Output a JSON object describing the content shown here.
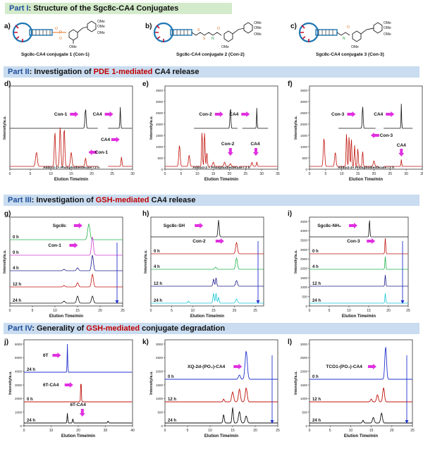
{
  "part1": {
    "prefix": "Part I",
    "title": ": Structure of the Sgc8c-CA4 Conjugates"
  },
  "part2": {
    "prefix": "Part II",
    "pre": ": Investigation of ",
    "highlight": "PDE 1-mediated",
    "post": " CA4 release"
  },
  "part3": {
    "prefix": "Part III",
    "pre": ": Investigation of ",
    "highlight": "GSH-mediated",
    "post": " CA4 release"
  },
  "part4": {
    "prefix": "Part IV",
    "pre": ": Generality of ",
    "highlight": "GSH-mediated",
    "post": " conjugate degradation"
  },
  "structures": [
    {
      "letter": "a)",
      "caption": "Sgc8c-CA4 conjugate 1 (Con-1)",
      "linker": "phosphate"
    },
    {
      "letter": "b)",
      "caption": "Sgc8c-CA4 conjugate 2 (Con-2)",
      "linker": "disulfide carbamate"
    },
    {
      "letter": "c)",
      "caption": "Sgc8c-CA4 conjugate 3 (Con-3)",
      "linker": "carbamate"
    }
  ],
  "ome_label": "OMe",
  "common": {
    "xlabel": "Elution Time/min",
    "ylabel": "Intensity/a.u."
  },
  "pde_charts": [
    {
      "letter": "d)",
      "top_label": "Con-1",
      "ca4_label": "CA4",
      "bottom_label": "CA4",
      "bottom_label2": "Con-1",
      "adduct_label": "Adduct-1+ Phosphodiesterase I  2 h",
      "xticks": [
        0,
        5,
        10,
        15,
        20,
        25,
        30
      ],
      "yticks": [],
      "xmax": 30
    },
    {
      "letter": "e)",
      "top_label": "Con-2",
      "ca4_label": "CA4",
      "bottom_label": "Con-2",
      "bottom_label2": "CA4",
      "adduct_label": "Adduct-2 + Phosphodiesterase I  2 h",
      "xticks": [
        0,
        5,
        10,
        15,
        20,
        25,
        30,
        35
      ],
      "yticks": [
        0,
        500,
        1000,
        1500,
        2000,
        2500,
        3000,
        3500
      ],
      "xmax": 35
    },
    {
      "letter": "f)",
      "top_label": "Con-3",
      "ca4_label": "CA4",
      "bottom_label": "Con-3",
      "bottom_label2": "CA4",
      "adduct_label": "Adduct-3+ Phosphodiesterase I  2 h",
      "xticks": [
        0,
        5,
        10,
        15,
        20,
        25,
        30,
        35
      ],
      "yticks": [
        0,
        500,
        1000,
        1500,
        2000,
        2500,
        3000,
        3500
      ],
      "xmax": 35
    }
  ],
  "gsh_charts": [
    {
      "letter": "g)",
      "labels": [
        "Sgc8c",
        "Con-1"
      ],
      "times": [
        "0 h",
        "0 h",
        "4 h",
        "12 h",
        "24 h"
      ],
      "xticks": [
        0,
        5,
        10,
        15,
        20,
        25
      ],
      "yticks": [],
      "xmax": 25
    },
    {
      "letter": "h)",
      "labels": [
        "Sgc8c-SH",
        "Con-2"
      ],
      "times": [
        "0 h",
        "4 h",
        "12 h",
        "24 h"
      ],
      "xticks": [
        0,
        5,
        10,
        15,
        20,
        25
      ],
      "yticks": [],
      "xmax": 27
    },
    {
      "letter": "i)",
      "labels": [
        "Sgc8c-NH₂",
        "Con-3"
      ],
      "times": [
        "0 h",
        "4 h",
        "12 h",
        "24 h"
      ],
      "xticks": [
        0,
        5,
        10,
        15,
        20,
        25
      ],
      "yticks": [
        0,
        500,
        1000,
        1500,
        2000,
        2500,
        3000,
        3500,
        4000,
        4500
      ],
      "xmax": 25
    }
  ],
  "gen_charts": [
    {
      "letter": "j)",
      "labels": [
        "6T",
        "6T-CA4",
        "6T-CA4"
      ],
      "times": [
        "24 h",
        "0 h",
        "24 h"
      ],
      "xticks": [
        0,
        10,
        20,
        30,
        40
      ],
      "yticks": [
        0,
        1000,
        2000,
        3000,
        4000,
        5000,
        6000
      ],
      "xmax": 40
    },
    {
      "letter": "k)",
      "labels": [
        "XQ-2d-(PO₄)-CA4"
      ],
      "times": [
        "0 h",
        "12 h",
        "24 h"
      ],
      "xticks": [
        0,
        5,
        10,
        15,
        20,
        25
      ],
      "yticks": [
        0,
        500,
        1000,
        1500,
        2000,
        2500,
        3000
      ],
      "xmax": 25
    },
    {
      "letter": "l)",
      "labels": [
        "TCO1-(PO₄)-CA4"
      ],
      "times": [
        "0 h",
        "12 h",
        "24 h"
      ],
      "xticks": [
        0,
        5,
        10,
        15,
        20,
        25
      ],
      "yticks": [
        0,
        500,
        1000,
        1500,
        2000,
        2500,
        3000
      ],
      "xmax": 25
    }
  ],
  "colors": {
    "black": "#111111",
    "red": "#c0140c",
    "green": "#22b14c",
    "magenta": "#d040d0",
    "navy": "#1c1c8c",
    "cyan": "#16c8d8",
    "blue": "#2233cc",
    "arrow": "#e030e0",
    "aptamer_red": "#c8102e"
  }
}
